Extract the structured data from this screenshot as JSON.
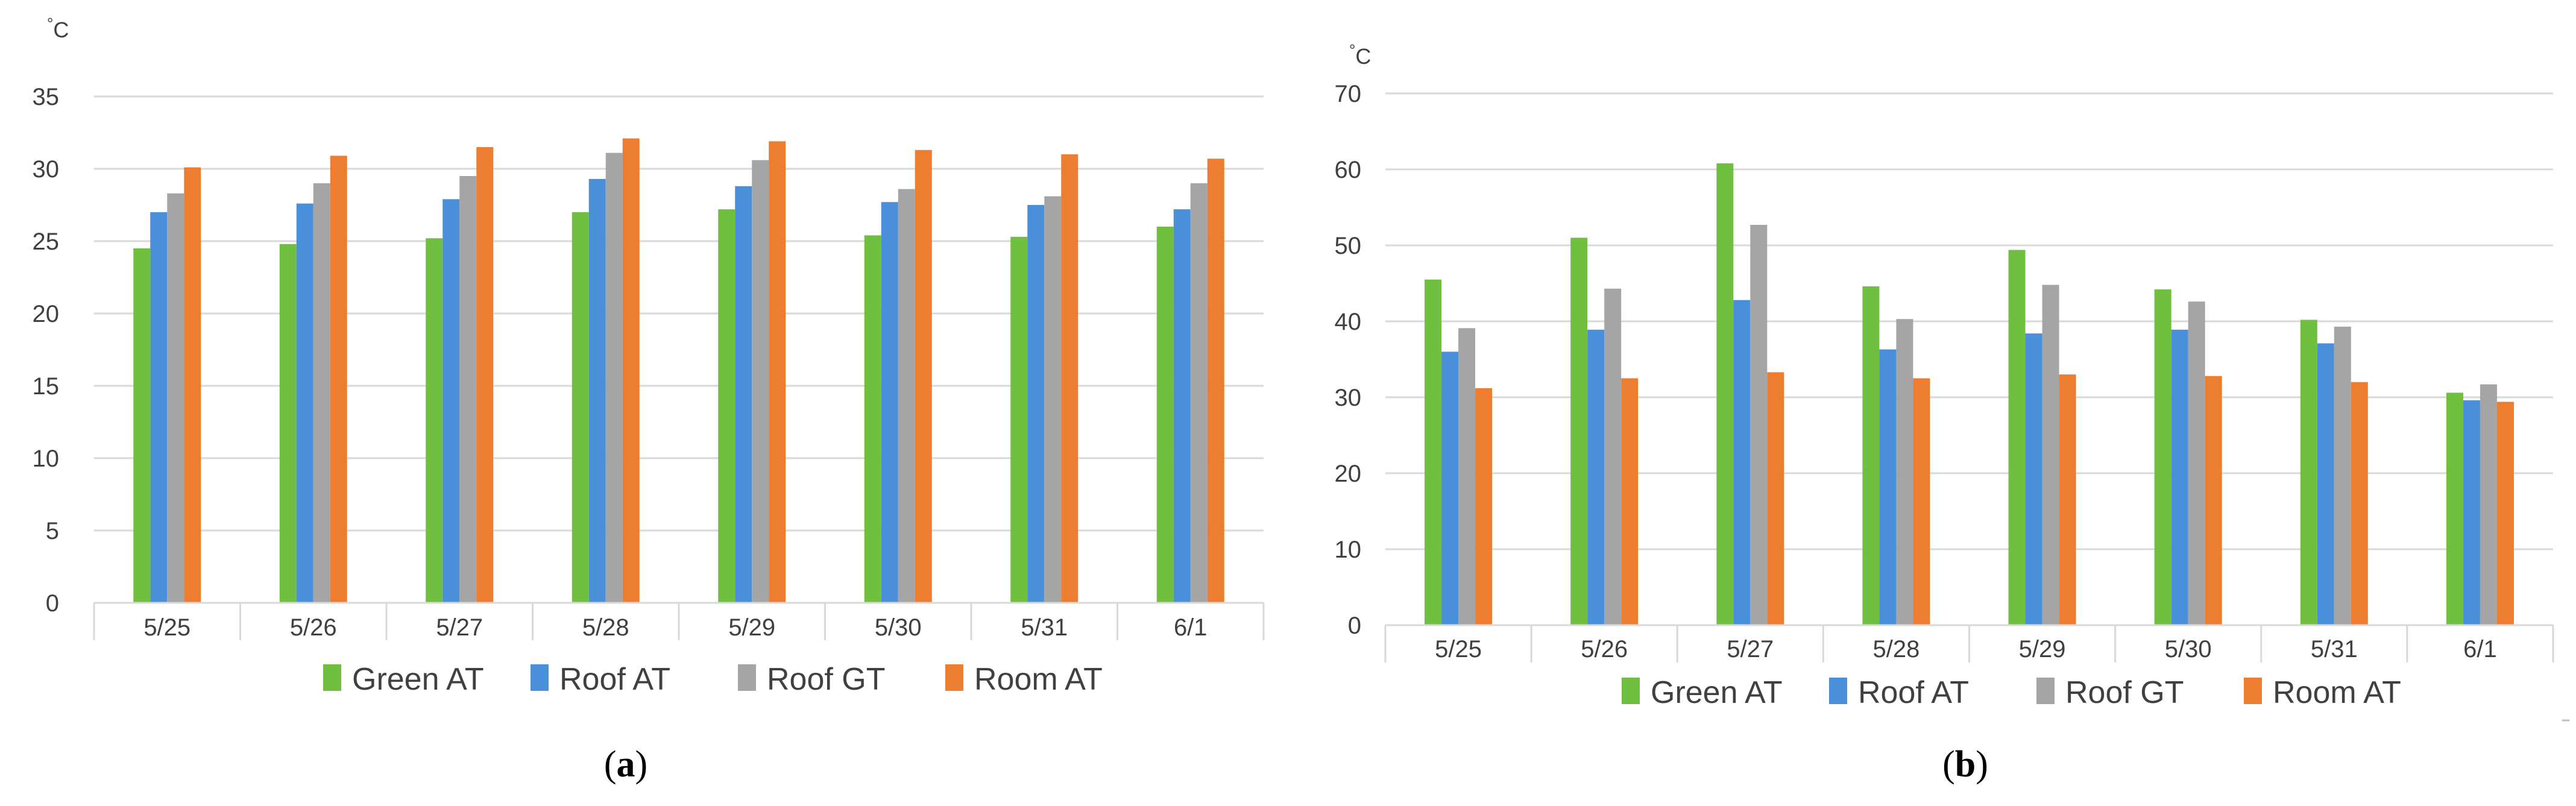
{
  "chart_data": [
    {
      "type": "bar",
      "panel_label": "(a)",
      "panel_label_letter": "a",
      "unit_label": "°C",
      "unit_symbol": "°",
      "unit_letter": "C",
      "categories": [
        "5/25",
        "5/26",
        "5/27",
        "5/28",
        "5/29",
        "5/30",
        "5/31",
        "6/1"
      ],
      "ylim": [
        0,
        35
      ],
      "yticks": [
        0,
        5,
        10,
        15,
        20,
        25,
        30,
        35
      ],
      "grid": true,
      "legend_position": "bottom",
      "series": [
        {
          "name": "Green AT",
          "color": "#70bf41",
          "values": [
            24.5,
            24.8,
            25.2,
            27.0,
            27.2,
            25.4,
            25.3,
            26.0
          ]
        },
        {
          "name": "Roof AT",
          "color": "#4a8fd9",
          "values": [
            27.0,
            27.6,
            27.9,
            29.3,
            28.8,
            27.7,
            27.5,
            27.2
          ]
        },
        {
          "name": "Roof GT",
          "color": "#a5a5a5",
          "values": [
            28.3,
            29.0,
            29.5,
            31.1,
            30.6,
            28.6,
            28.1,
            29.0
          ]
        },
        {
          "name": "Room AT",
          "color": "#ed7d31",
          "values": [
            30.1,
            30.9,
            31.5,
            32.1,
            31.9,
            31.3,
            31.0,
            30.7
          ]
        }
      ]
    },
    {
      "type": "bar",
      "panel_label": "(b)",
      "panel_label_letter": "b",
      "unit_label": "°C",
      "unit_symbol": "°",
      "unit_letter": "C",
      "categories": [
        "5/25",
        "5/26",
        "5/27",
        "5/28",
        "5/29",
        "5/30",
        "5/31",
        "6/1"
      ],
      "ylim": [
        0,
        70
      ],
      "yticks": [
        0,
        10,
        20,
        30,
        40,
        50,
        60,
        70
      ],
      "grid": true,
      "legend_position": "bottom",
      "series": [
        {
          "name": "Green AT",
          "color": "#70bf41",
          "values": [
            45.5,
            51.0,
            60.8,
            44.6,
            49.4,
            44.2,
            40.2,
            30.6
          ]
        },
        {
          "name": "Roof AT",
          "color": "#4a8fd9",
          "values": [
            36.0,
            38.9,
            42.8,
            36.3,
            38.4,
            38.9,
            37.1,
            29.6
          ]
        },
        {
          "name": "Roof GT",
          "color": "#a5a5a5",
          "values": [
            39.1,
            44.3,
            52.7,
            40.3,
            44.8,
            42.6,
            39.3,
            31.7
          ]
        },
        {
          "name": "Room AT",
          "color": "#ed7d31",
          "values": [
            31.2,
            32.5,
            33.3,
            32.5,
            33.0,
            32.8,
            32.0,
            29.4
          ]
        }
      ]
    }
  ]
}
